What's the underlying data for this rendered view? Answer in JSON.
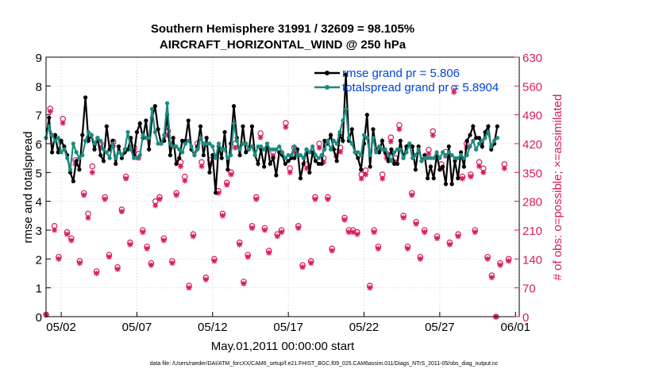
{
  "chart_data": {
    "type": "line",
    "title": "Southern Hemisphere 31991 / 32609 = 98.105%",
    "subtitle": "AIRCRAFT_HORIZONTAL_WIND @ 250 hPa",
    "xlabel": "May.01,2011 00:00:00 start",
    "ylabel": "rmse and totalspread",
    "y2label": "# of obs: o=possible; ×=assimilated",
    "footnote": "data file: /Users/raeder/DAI/ATM_forcXX/CAM6_setup/f.e21.FHIST_BGC.f09_025.CAM6assim.011/Diags_NTrS_2011-05/obs_diag_output.nc",
    "x_ticks": [
      "05/02",
      "05/07",
      "05/12",
      "05/17",
      "05/22",
      "05/27",
      "06/01"
    ],
    "x_tick_days": [
      1,
      6,
      11,
      16,
      21,
      26,
      31
    ],
    "xlim": [
      0,
      31.25
    ],
    "ylim": [
      0,
      9
    ],
    "y_ticks": [
      "0",
      "1",
      "2",
      "3",
      "4",
      "5",
      "6",
      "7",
      "8",
      "9"
    ],
    "y2lim": [
      0,
      630
    ],
    "y2_ticks": [
      "0",
      "70",
      "140",
      "210",
      "280",
      "350",
      "420",
      "490",
      "560",
      "630"
    ],
    "legend": [
      "rmse grand pr = 5.806",
      "totalspread grand pr = 5.8904"
    ],
    "colors": {
      "rmse": "#000000",
      "spread": "#1f8a80",
      "obs": "#d81b60",
      "axis2": "#d81b60",
      "legend_text": "#0044dd"
    },
    "series": [
      {
        "name": "rmse",
        "values": [
          6.2,
          6.9,
          5.7,
          6.3,
          5.7,
          6.1,
          5.9,
          5.6,
          5.0,
          4.7,
          5.4,
          5.1,
          6.3,
          7.6,
          6.1,
          6.3,
          5.8,
          6.2,
          5.6,
          5.4,
          6.6,
          5.8,
          6.1,
          5.3,
          5.9,
          5.5,
          5.7,
          5.8,
          6.2,
          5.6,
          6.4,
          6.7,
          6.2,
          6.8,
          5.8,
          6.9,
          7.3,
          6.5,
          6.0,
          6.1,
          7.0,
          5.6,
          6.2,
          5.3,
          5.5,
          6.1,
          6.1,
          6.8,
          5.8,
          5.6,
          5.9,
          6.6,
          5.6,
          6.2,
          5.0,
          5.6,
          4.3,
          5.9,
          5.5,
          6.4,
          5.1,
          6.0,
          7.3,
          6.2,
          5.6,
          6.6,
          5.7,
          5.8,
          6.6,
          5.6,
          5.3,
          5.8,
          5.2,
          6.0,
          5.3,
          5.5,
          4.9,
          5.7,
          5.6,
          5.3,
          5.4,
          5.5,
          5.5,
          5.8,
          4.8,
          5.3,
          5.8,
          5.0,
          5.7,
          5.4,
          5.3,
          5.3,
          6.1,
          6.0,
          6.3,
          5.8,
          5.4,
          6.3,
          6.1,
          8.4,
          6.1,
          6.5,
          5.7,
          5.5,
          5.1,
          6.0,
          7.0,
          5.2,
          6.5,
          5.8,
          5.7,
          6.1,
          5.7,
          5.4,
          5.8,
          5.3,
          5.3,
          6.1,
          5.5,
          5.9,
          6.0,
          5.9,
          5.1,
          5.9,
          5.4,
          5.6,
          4.8,
          5.2,
          4.8,
          5.6,
          5.1,
          5.2,
          4.6,
          5.9,
          4.6,
          5.4,
          4.8,
          5.7,
          5.2,
          6.1,
          6.3,
          6.6,
          6.2,
          6.2,
          5.9,
          6.4,
          6.6,
          5.8,
          6.0,
          6.6
        ],
        "x_start": 0,
        "x_step": 0.2
      },
      {
        "name": "totalspread",
        "values": [
          6.2,
          6.6,
          6.3,
          6.1,
          6.2,
          5.7,
          5.8,
          5.5,
          5.1,
          6.0,
          5.7,
          5.5,
          5.6,
          6.1,
          6.4,
          6.3,
          6.0,
          6.2,
          6.1,
          5.8,
          5.7,
          5.5,
          6.0,
          5.5,
          5.7,
          5.6,
          5.8,
          6.4,
          5.8,
          5.5,
          5.5,
          5.6,
          6.3,
          6.2,
          6.2,
          7.2,
          6.4,
          6.0,
          6.0,
          6.3,
          7.4,
          6.0,
          5.9,
          5.9,
          5.8,
          5.7,
          6.0,
          6.1,
          5.9,
          5.6,
          5.8,
          6.2,
          6.0,
          6.0,
          6.0,
          5.9,
          5.5,
          6.0,
          5.8,
          5.8,
          5.5,
          5.6,
          6.7,
          6.1,
          5.8,
          6.0,
          6.0,
          5.8,
          5.9,
          5.6,
          5.9,
          5.9,
          5.8,
          6.0,
          5.8,
          5.8,
          5.8,
          5.9,
          5.7,
          5.5,
          5.6,
          5.6,
          5.9,
          5.6,
          5.6,
          5.5,
          5.8,
          5.7,
          5.9,
          5.6,
          5.5,
          5.6,
          5.8,
          6.1,
          5.8,
          6.1,
          6.0,
          6.4,
          6.8,
          7.2,
          6.2,
          6.0,
          5.7,
          5.7,
          5.6,
          6.3,
          6.2,
          5.6,
          6.2,
          5.7,
          5.9,
          5.8,
          5.8,
          5.6,
          5.4,
          5.7,
          5.8,
          5.8,
          5.5,
          5.7,
          6.0,
          5.5,
          5.6,
          5.8,
          5.4,
          5.5,
          5.5,
          5.5,
          5.5,
          5.7,
          5.5,
          5.7,
          5.6,
          5.7,
          5.6,
          5.5,
          5.5,
          5.6,
          5.5,
          5.6,
          5.9,
          6.1,
          5.8,
          6.0,
          6.1,
          6.2,
          6.4,
          5.9,
          6.1,
          6.2
        ],
        "x_start": 0,
        "x_step": 0.2
      },
      {
        "name": "possible",
        "axis": "right",
        "values": [
          5,
          505,
          220,
          145,
          480,
          205,
          190,
          380,
          135,
          300,
          250,
          365,
          110,
          420,
          290,
          150,
          425,
          120,
          260,
          340,
          180,
          410,
          395,
          210,
          170,
          130,
          280,
          290,
          190,
          450,
          135,
          300,
          375,
          340,
          75,
          200,
          420,
          375,
          95,
          380,
          140,
          305,
          250,
          325,
          350,
          420,
          180,
          85,
          150,
          220,
          290,
          445,
          215,
          160,
          400,
          200,
          210,
          470,
          360,
          410,
          220,
          125,
          370,
          135,
          290,
          420,
          385,
          290,
          165,
          400,
          410,
          240,
          210,
          210,
          205,
          345,
          355,
          75,
          210,
          170,
          345,
          395,
          435,
          385,
          465,
          245,
          170,
          300,
          230,
          145,
          210,
          405,
          450,
          195,
          370,
          400,
          180,
          555,
          200,
          340,
          420,
          345,
          210,
          375,
          360,
          145,
          100,
          0,
          130,
          370,
          140
        ],
        "x_start": 0,
        "x_step": 0.2777
      },
      {
        "name": "assimilated",
        "axis": "right",
        "values": [
          5,
          498,
          210,
          140,
          470,
          200,
          185,
          370,
          130,
          295,
          240,
          350,
          105,
          410,
          285,
          145,
          415,
          115,
          255,
          335,
          175,
          400,
          385,
          205,
          165,
          125,
          270,
          285,
          185,
          440,
          130,
          295,
          365,
          330,
          70,
          195,
          410,
          365,
          90,
          370,
          135,
          300,
          245,
          320,
          345,
          410,
          175,
          80,
          145,
          215,
          285,
          435,
          210,
          155,
          390,
          195,
          205,
          460,
          350,
          400,
          215,
          120,
          360,
          130,
          285,
          410,
          375,
          285,
          160,
          390,
          400,
          235,
          205,
          205,
          200,
          335,
          345,
          70,
          205,
          165,
          335,
          385,
          425,
          375,
          455,
          240,
          165,
          295,
          225,
          140,
          205,
          395,
          440,
          190,
          360,
          390,
          175,
          545,
          195,
          335,
          410,
          340,
          205,
          365,
          350,
          140,
          95,
          0,
          125,
          360,
          135
        ],
        "x_start": 0,
        "x_step": 0.2777
      }
    ]
  }
}
